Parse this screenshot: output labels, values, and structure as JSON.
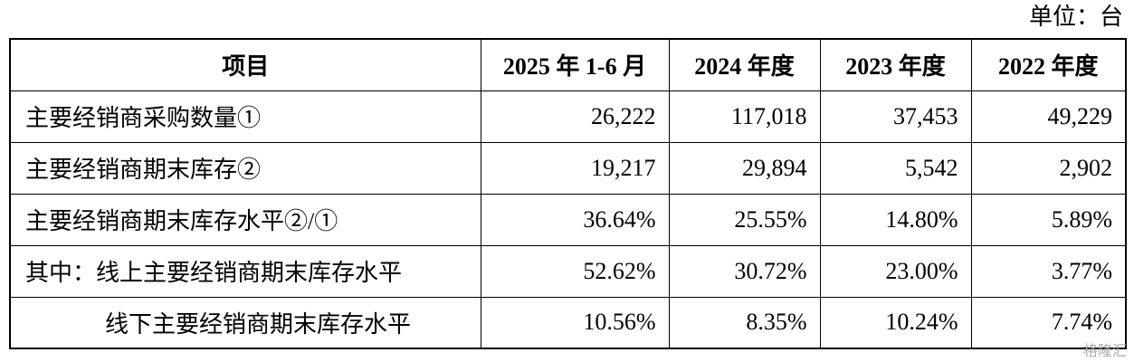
{
  "unit": "单位：台",
  "table": {
    "header": [
      "项目",
      "2025 年 1-6 月",
      "2024 年度",
      "2023 年度",
      "2022 年度"
    ],
    "rows": [
      [
        "主要经销商采购数量①",
        "26,222",
        "117,018",
        "37,453",
        "49,229"
      ],
      [
        "主要经销商期末库存②",
        "19,217",
        "29,894",
        "5,542",
        "2,902"
      ],
      [
        "主要经销商期末库存水平②/①",
        "36.64%",
        "25.55%",
        "14.80%",
        "5.89%"
      ],
      [
        "其中：线上主要经销商期末库存水平",
        "52.62%",
        "30.72%",
        "23.00%",
        "3.77%"
      ],
      [
        "线下主要经销商期末库存水平",
        "10.56%",
        "8.35%",
        "10.24%",
        "7.74%"
      ]
    ]
  },
  "watermark": "格隆汇"
}
